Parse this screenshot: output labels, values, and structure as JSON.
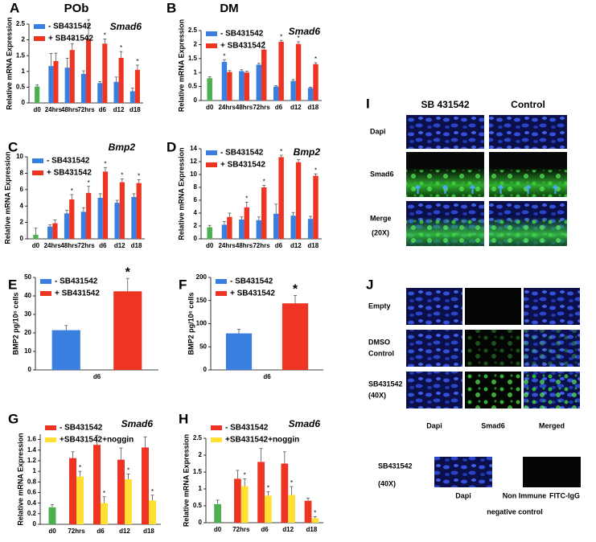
{
  "chart_data": [
    {
      "type": "bar",
      "panel_label": "A",
      "heading": "POb",
      "title": "Smad6",
      "ylabel": "Relative mRNA Expression",
      "legend": "upper left",
      "categories": [
        "d0",
        "24hrs",
        "48hrs",
        "72hrs",
        "d6",
        "d12",
        "d18"
      ],
      "ylim": [
        0,
        2.5
      ],
      "yticks": [
        0,
        0.5,
        1,
        1.5,
        2,
        2.5
      ],
      "series": [
        {
          "color": "#4caf50",
          "values": [
            0.52,
            null,
            null,
            null,
            null,
            null,
            null
          ],
          "errors": [
            0.05,
            null,
            null,
            null,
            null,
            null,
            null
          ]
        },
        {
          "name": "- SB431542",
          "color": "#3a7fe0",
          "values": [
            null,
            1.17,
            1.12,
            0.92,
            0.63,
            0.67,
            0.37
          ],
          "errors": [
            null,
            0.4,
            0.3,
            0.1,
            0.05,
            0.15,
            0.1
          ]
        },
        {
          "name": "+ SB431542",
          "color": "#ee3524",
          "values": [
            null,
            1.33,
            1.68,
            2.02,
            1.88,
            1.43,
            1.05
          ],
          "errors": [
            null,
            0.25,
            0.2,
            0.45,
            0.15,
            0.2,
            0.15
          ],
          "marks": [
            null,
            null,
            "*",
            "*",
            "*",
            "*",
            "*"
          ]
        }
      ]
    },
    {
      "type": "bar",
      "panel_label": "B",
      "heading": "DM",
      "title": "Smad6",
      "ylabel": "Relative mRNA Expression",
      "legend": "upper left",
      "categories": [
        "d0",
        "24hrs",
        "48hrs",
        "72hrs",
        "d6",
        "d12",
        "d18"
      ],
      "ylim": [
        0,
        2.5
      ],
      "yticks": [
        0,
        0.5,
        1,
        1.5,
        2,
        2.5
      ],
      "series": [
        {
          "color": "#4caf50",
          "values": [
            0.8,
            null,
            null,
            null,
            null,
            null,
            null
          ],
          "errors": [
            0.05,
            null,
            null,
            null,
            null,
            null,
            null
          ]
        },
        {
          "name": "- SB431542",
          "color": "#3a7fe0",
          "values": [
            null,
            1.38,
            1.05,
            1.28,
            0.5,
            0.7,
            0.45
          ],
          "errors": [
            null,
            0.08,
            0.05,
            0.05,
            0.03,
            0.05,
            0.03
          ],
          "marks": [
            null,
            "*",
            null,
            null,
            null,
            null,
            null
          ]
        },
        {
          "name": "+ SB431542",
          "color": "#ee3524",
          "values": [
            null,
            1.02,
            1.0,
            1.82,
            2.1,
            2.02,
            1.3
          ],
          "errors": [
            null,
            0.05,
            0.05,
            0.08,
            0.05,
            0.08,
            0.05
          ],
          "marks": [
            null,
            null,
            null,
            "*",
            "*",
            "*",
            "*"
          ]
        }
      ]
    },
    {
      "type": "bar",
      "panel_label": "C",
      "title": "Bmp2",
      "ylabel": "Relative mRNA Expression",
      "legend": "upper left",
      "categories": [
        "d0",
        "24hrs",
        "48hrs",
        "72hrs",
        "d6",
        "d12",
        "d18"
      ],
      "ylim": [
        0,
        10
      ],
      "yticks": [
        0,
        2,
        4,
        6,
        8,
        10
      ],
      "series": [
        {
          "color": "#4caf50",
          "values": [
            0.5,
            null,
            null,
            null,
            null,
            null,
            null
          ],
          "errors": [
            0.8,
            null,
            null,
            null,
            null,
            null,
            null
          ]
        },
        {
          "name": "- SB431542",
          "color": "#3a7fe0",
          "values": [
            null,
            1.5,
            3.1,
            3.3,
            5.0,
            4.4,
            5.1
          ],
          "errors": [
            null,
            0.2,
            0.4,
            0.5,
            0.5,
            0.3,
            0.4
          ]
        },
        {
          "name": "+ SB431542",
          "color": "#ee3524",
          "values": [
            null,
            1.9,
            4.8,
            5.6,
            8.2,
            6.9,
            6.8
          ],
          "errors": [
            null,
            0.4,
            0.6,
            0.8,
            0.5,
            0.4,
            0.4
          ],
          "marks": [
            null,
            null,
            "*",
            "*",
            "*",
            "*",
            "*"
          ]
        }
      ]
    },
    {
      "type": "bar",
      "panel_label": "D",
      "title": "Bmp2",
      "ylabel": "Relative mRNA Expression",
      "legend": "upper left",
      "categories": [
        "d0",
        "24hrs",
        "48hrs",
        "72hrs",
        "d6",
        "d12",
        "d18"
      ],
      "ylim": [
        0,
        14
      ],
      "yticks": [
        0,
        2,
        4,
        6,
        8,
        10,
        12,
        14
      ],
      "series": [
        {
          "color": "#4caf50",
          "values": [
            1.8,
            null,
            null,
            null,
            null,
            null,
            null
          ],
          "errors": [
            0.3,
            null,
            null,
            null,
            null,
            null,
            null
          ]
        },
        {
          "name": "- SB431542",
          "color": "#3a7fe0",
          "values": [
            null,
            2.2,
            3.0,
            2.9,
            3.9,
            3.6,
            3.1
          ],
          "errors": [
            null,
            0.5,
            0.4,
            0.5,
            1.5,
            0.5,
            0.4
          ]
        },
        {
          "name": "+ SB431542",
          "color": "#ee3524",
          "values": [
            null,
            3.4,
            4.9,
            8.0,
            12.7,
            11.9,
            9.8
          ],
          "errors": [
            null,
            0.6,
            0.8,
            0.3,
            0.3,
            0.4,
            0.3
          ],
          "marks": [
            null,
            null,
            "*",
            "*",
            "*",
            "*",
            "*"
          ]
        }
      ]
    },
    {
      "type": "bar",
      "panel_label": "E",
      "ylabel": "BMP2 pg/10⁶ cells",
      "legend": "upper left",
      "categories": [
        "d6"
      ],
      "ylim": [
        0,
        50
      ],
      "yticks": [
        0,
        10,
        20,
        30,
        40,
        50
      ],
      "series": [
        {
          "name": "- SB431542",
          "color": "#3a7fe0",
          "values": [
            21.5
          ],
          "errors": [
            2.5
          ]
        },
        {
          "name": "+ SB431542",
          "color": "#ee3524",
          "values": [
            42.5
          ],
          "errors": [
            7
          ],
          "marks": [
            "*"
          ]
        }
      ]
    },
    {
      "type": "bar",
      "panel_label": "F",
      "ylabel": "BMP2 pg/10⁶ cells",
      "legend": "upper left",
      "categories": [
        "d6"
      ],
      "ylim": [
        0,
        200
      ],
      "yticks": [
        0,
        50,
        100,
        150,
        200
      ],
      "series": [
        {
          "name": "- SB431542",
          "color": "#3a7fe0",
          "values": [
            79
          ],
          "errors": [
            9
          ]
        },
        {
          "name": "+ SB431542",
          "color": "#ee3524",
          "values": [
            144
          ],
          "errors": [
            17
          ],
          "marks": [
            "*"
          ]
        }
      ]
    },
    {
      "type": "bar",
      "panel_label": "G",
      "title": "Smad6",
      "ylabel": "Relative mRNA Expression",
      "legend": "upper left",
      "categories": [
        "d0",
        "72hrs",
        "d6",
        "d12",
        "d18"
      ],
      "ylim": [
        0,
        1.7
      ],
      "yticks": [
        0,
        0.2,
        0.4,
        0.6,
        0.8,
        1,
        1.2,
        1.4,
        1.6
      ],
      "series": [
        {
          "color": "#4caf50",
          "values": [
            0.32,
            null,
            null,
            null,
            null
          ],
          "errors": [
            0.05,
            null,
            null,
            null,
            null
          ]
        },
        {
          "name": "- SB431542",
          "color": "#ee3524",
          "values": [
            null,
            1.25,
            1.5,
            1.22,
            1.45
          ],
          "errors": [
            null,
            0.12,
            0.18,
            0.22,
            0.2
          ]
        },
        {
          "name": "+SB431542+noggin",
          "color": "#ffe033",
          "values": [
            null,
            0.9,
            0.4,
            0.85,
            0.45
          ],
          "errors": [
            null,
            0.1,
            0.12,
            0.1,
            0.1
          ],
          "marks": [
            null,
            "*",
            "*",
            "*",
            "*"
          ]
        }
      ]
    },
    {
      "type": "bar",
      "panel_label": "H",
      "title": "Smad6",
      "ylabel": "Relative mRNA Expression",
      "legend": "upper left",
      "categories": [
        "d0",
        "72hrs",
        "d6",
        "d12",
        "d18"
      ],
      "ylim": [
        0,
        2.5
      ],
      "yticks": [
        0,
        0.5,
        1,
        1.5,
        2,
        2.5
      ],
      "series": [
        {
          "color": "#4caf50",
          "values": [
            0.55,
            null,
            null,
            null,
            null
          ],
          "errors": [
            0.12,
            null,
            null,
            null,
            null
          ]
        },
        {
          "name": "- SB431542",
          "color": "#ee3524",
          "values": [
            null,
            1.3,
            1.8,
            1.75,
            0.65
          ],
          "errors": [
            null,
            0.25,
            0.4,
            0.35,
            0.08
          ]
        },
        {
          "name": "+SB431542+noggin",
          "color": "#ffe033",
          "values": [
            null,
            1.08,
            0.8,
            0.82,
            0.13
          ],
          "errors": [
            null,
            0.22,
            0.12,
            0.25,
            0.05
          ],
          "marks": [
            null,
            "*",
            "*",
            "*",
            "*"
          ]
        }
      ]
    }
  ],
  "panel_I": {
    "label": "I",
    "columns": [
      "SB 431542",
      "Control"
    ],
    "rows": [
      "Dapi",
      "Smad6",
      "Merge"
    ],
    "magnification": "(20X)"
  },
  "panel_J": {
    "label": "J",
    "rows": [
      [
        "Empty"
      ],
      [
        "DMSO",
        "Control"
      ],
      [
        "SB431542",
        "(40X)"
      ]
    ],
    "columns": [
      "Dapi",
      "Smad6",
      "Merged"
    ],
    "negative_control": {
      "row": [
        "SB431542",
        "(40X)"
      ],
      "columns": [
        "Dapi",
        "Non Immune",
        "FITC-IgG"
      ],
      "caption": "negative control"
    }
  }
}
